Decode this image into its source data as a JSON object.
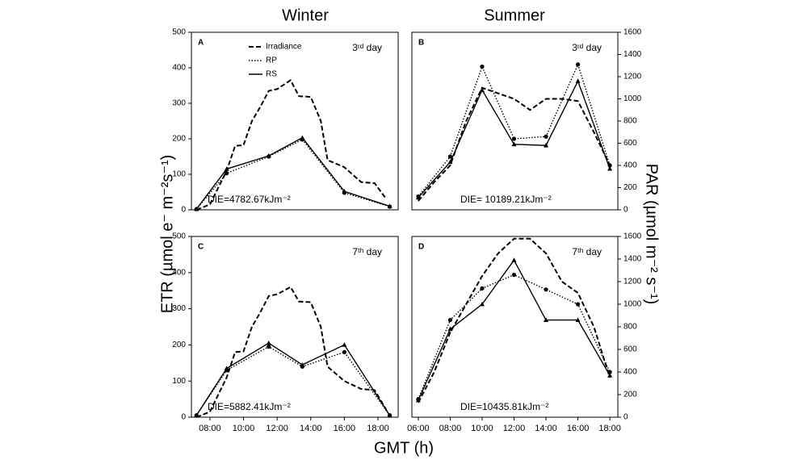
{
  "column_titles": [
    "Winter",
    "Summer"
  ],
  "y_label": "ETR (µmol e⁻ m⁻²s⁻¹)",
  "y2_label": "PAR (µmol m⁻² s⁻¹)",
  "x_label": "GMT (h)",
  "chart_data": [
    {
      "type": "line",
      "label": "A",
      "annotation": "3ʳᵈ day",
      "die": "DIE=4782.67kJm⁻²",
      "legend": true,
      "axis_side": "left",
      "xlim": [
        6.9,
        19.2
      ],
      "ylim": [
        0,
        500
      ],
      "yticks": [
        0,
        100,
        200,
        300,
        400,
        500
      ],
      "series": [
        {
          "name": "Irradiance",
          "dash": "dashed",
          "marker": "none",
          "x": [
            7.2,
            8,
            9,
            9.5,
            10,
            10.5,
            11,
            11.5,
            12,
            12.8,
            13.3,
            14,
            14.6,
            15,
            16,
            17,
            17.8,
            18.5
          ],
          "values": [
            0,
            15,
            110,
            180,
            182,
            250,
            290,
            335,
            340,
            365,
            320,
            318,
            250,
            140,
            120,
            78,
            75,
            30
          ]
        },
        {
          "name": "RP",
          "dash": "dotted",
          "marker": "circle",
          "x": [
            7.2,
            9,
            11.5,
            13.5,
            16,
            18.7
          ],
          "values": [
            2,
            103,
            150,
            198,
            48,
            9
          ]
        },
        {
          "name": "RS",
          "dash": "solid",
          "marker": "triangle",
          "x": [
            7.2,
            9,
            11.5,
            13.5,
            16,
            18.7
          ],
          "values": [
            2,
            115,
            152,
            203,
            52,
            10
          ]
        }
      ]
    },
    {
      "type": "line",
      "label": "B",
      "annotation": "3ʳᵈ day",
      "die": "DIE= 10189.21kJm⁻²",
      "legend": false,
      "axis_side": "right",
      "xlim": [
        5.6,
        18.5
      ],
      "ylim": [
        0,
        1600
      ],
      "yticks": [
        0,
        200,
        400,
        600,
        800,
        1000,
        1200,
        1400,
        1600
      ],
      "series": [
        {
          "name": "Irradiance",
          "dash": "dashed",
          "marker": "none",
          "x": [
            6,
            7,
            8,
            9,
            10,
            11,
            12,
            13,
            14,
            15,
            16,
            17,
            18
          ],
          "values": [
            80,
            250,
            400,
            800,
            1100,
            1050,
            1000,
            900,
            1000,
            1000,
            980,
            700,
            400
          ]
        },
        {
          "name": "RP",
          "dash": "dotted",
          "marker": "circle",
          "x": [
            6,
            8,
            10,
            12,
            14,
            16,
            18
          ],
          "values": [
            120,
            480,
            1290,
            640,
            660,
            1310,
            400
          ]
        },
        {
          "name": "RS",
          "dash": "solid",
          "marker": "triangle",
          "x": [
            6,
            8,
            10,
            12,
            14,
            16,
            18
          ],
          "values": [
            110,
            430,
            1080,
            590,
            580,
            1160,
            370
          ]
        }
      ]
    },
    {
      "type": "line",
      "label": "C",
      "annotation": "7ᵗʰ day",
      "die": "DIE=5882.41kJm⁻²",
      "legend": false,
      "axis_side": "left",
      "xlim": [
        6.9,
        19.2
      ],
      "ylim": [
        0,
        500
      ],
      "yticks": [
        0,
        100,
        200,
        300,
        400,
        500
      ],
      "xticks": [
        {
          "value": 8,
          "label": "08:00"
        },
        {
          "value": 10,
          "label": "10:00"
        },
        {
          "value": 12,
          "label": "12:00"
        },
        {
          "value": 14,
          "label": "14:00"
        },
        {
          "value": 16,
          "label": "16:00"
        },
        {
          "value": 18,
          "label": "18:00"
        }
      ],
      "series": [
        {
          "name": "Irradiance",
          "dash": "dashed",
          "marker": "none",
          "x": [
            7.2,
            8,
            9,
            9.5,
            10,
            10.5,
            11,
            11.5,
            12,
            12.8,
            13.3,
            14,
            14.6,
            15,
            16,
            17,
            17.8,
            18.5
          ],
          "values": [
            0,
            15,
            110,
            180,
            182,
            250,
            290,
            335,
            340,
            360,
            320,
            318,
            250,
            140,
            100,
            78,
            75,
            20
          ]
        },
        {
          "name": "RP",
          "dash": "dotted",
          "marker": "circle",
          "x": [
            7.2,
            9,
            11.5,
            13.5,
            16,
            18.7
          ],
          "values": [
            5,
            130,
            195,
            140,
            180,
            5
          ]
        },
        {
          "name": "RS",
          "dash": "solid",
          "marker": "triangle",
          "x": [
            7.2,
            9,
            11.5,
            13.5,
            16,
            18.7
          ],
          "values": [
            5,
            135,
            205,
            145,
            200,
            5
          ]
        }
      ]
    },
    {
      "type": "line",
      "label": "D",
      "annotation": "7ᵗʰ day",
      "die": "DIE=10435.81kJm⁻²",
      "legend": false,
      "axis_side": "right",
      "xlim": [
        5.6,
        18.5
      ],
      "ylim": [
        0,
        1600
      ],
      "yticks": [
        0,
        200,
        400,
        600,
        800,
        1000,
        1200,
        1400,
        1600
      ],
      "xticks": [
        {
          "value": 6,
          "label": "06:00"
        },
        {
          "value": 8,
          "label": "08:00"
        },
        {
          "value": 10,
          "label": "10:00"
        },
        {
          "value": 12,
          "label": "12:00"
        },
        {
          "value": 14,
          "label": "14:00"
        },
        {
          "value": 16,
          "label": "16:00"
        },
        {
          "value": 18,
          "label": "18:00"
        }
      ],
      "series": [
        {
          "name": "Irradiance",
          "dash": "dashed",
          "marker": "none",
          "x": [
            6,
            7,
            8,
            9,
            10,
            11,
            12,
            13,
            14,
            15,
            16,
            17,
            18
          ],
          "values": [
            130,
            400,
            750,
            1000,
            1250,
            1450,
            1580,
            1580,
            1450,
            1200,
            1100,
            800,
            350
          ]
        },
        {
          "name": "RP",
          "dash": "dotted",
          "marker": "circle",
          "x": [
            6,
            8,
            10,
            12,
            14,
            16,
            18
          ],
          "values": [
            160,
            860,
            1140,
            1260,
            1130,
            1000,
            400
          ]
        },
        {
          "name": "RS",
          "dash": "solid",
          "marker": "triangle",
          "x": [
            6,
            8,
            10,
            12,
            14,
            16,
            18
          ],
          "values": [
            150,
            780,
            1000,
            1390,
            860,
            860,
            370
          ]
        }
      ]
    }
  ]
}
